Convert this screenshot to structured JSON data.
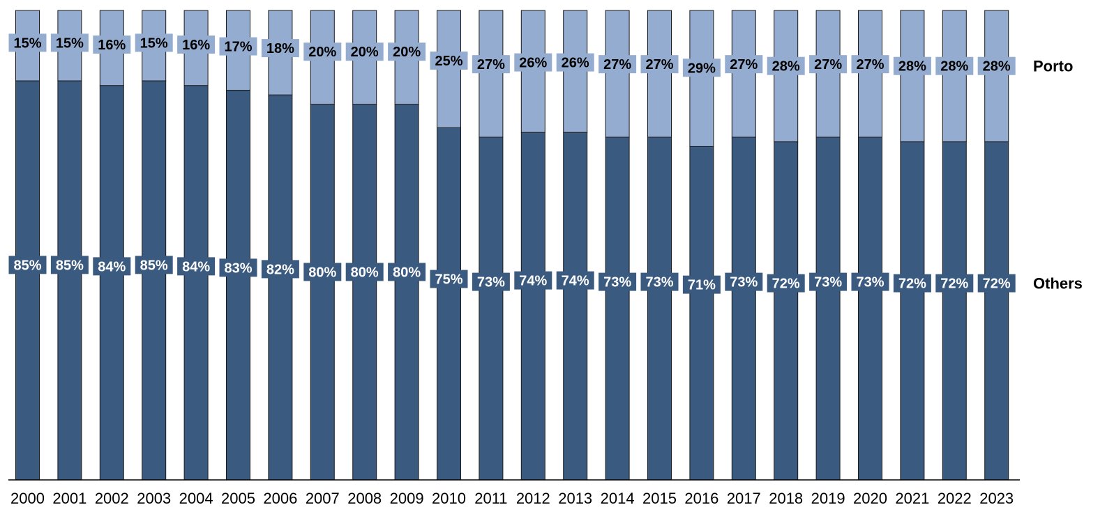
{
  "chart_data": {
    "type": "bar",
    "stacked": true,
    "percent": true,
    "categories": [
      "2000",
      "2001",
      "2002",
      "2003",
      "2004",
      "2005",
      "2006",
      "2007",
      "2008",
      "2009",
      "2010",
      "2011",
      "2012",
      "2013",
      "2014",
      "2015",
      "2016",
      "2017",
      "2018",
      "2019",
      "2020",
      "2021",
      "2022",
      "2023"
    ],
    "series": [
      {
        "name": "Others",
        "color": "#3a5a80",
        "label_text_color": "#ffffff",
        "values": [
          85,
          85,
          84,
          85,
          84,
          83,
          82,
          80,
          80,
          80,
          75,
          73,
          74,
          74,
          73,
          73,
          71,
          73,
          72,
          73,
          73,
          72,
          72,
          72
        ],
        "labels": [
          "85%",
          "85%",
          "84%",
          "85%",
          "84%",
          "83%",
          "82%",
          "80%",
          "80%",
          "80%",
          "75%",
          "73%",
          "74%",
          "74%",
          "73%",
          "73%",
          "71%",
          "73%",
          "72%",
          "73%",
          "73%",
          "72%",
          "72%",
          "72%"
        ]
      },
      {
        "name": "Porto",
        "color": "#94acd0",
        "label_text_color": "#000000",
        "values": [
          15,
          15,
          16,
          15,
          16,
          17,
          18,
          20,
          20,
          20,
          25,
          27,
          26,
          26,
          27,
          27,
          29,
          27,
          28,
          27,
          27,
          28,
          28,
          28
        ],
        "labels": [
          "15%",
          "15%",
          "16%",
          "15%",
          "16%",
          "17%",
          "18%",
          "20%",
          "20%",
          "20%",
          "25%",
          "27%",
          "26%",
          "26%",
          "27%",
          "27%",
          "29%",
          "27%",
          "28%",
          "27%",
          "27%",
          "28%",
          "28%",
          "28%"
        ]
      }
    ],
    "title": "",
    "xlabel": "",
    "ylabel": "",
    "ylim": [
      0,
      100
    ],
    "grid": false,
    "legend_placement": "right, labels at series level"
  }
}
